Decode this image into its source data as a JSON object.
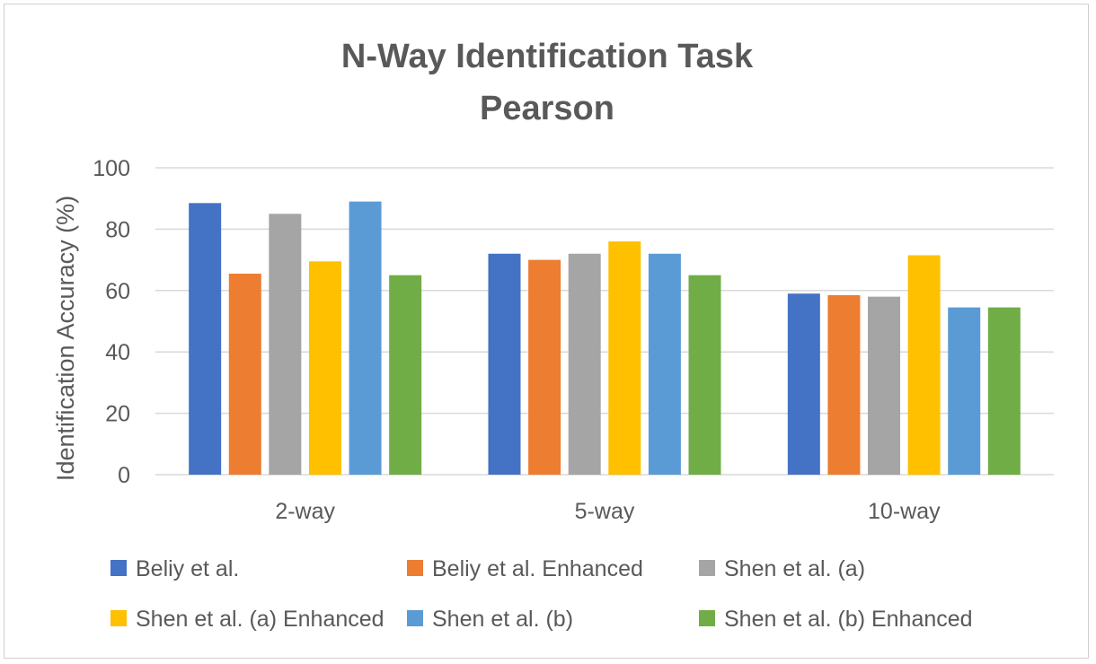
{
  "chart_data": {
    "type": "bar",
    "title": "N-Way Identification Task",
    "subtitle": "Pearson",
    "xlabel": "",
    "ylabel": "Identification Accuracy (%)",
    "ylim": [
      0,
      100
    ],
    "yticks": [
      0,
      20,
      40,
      60,
      80,
      100
    ],
    "grid": true,
    "legend_position": "bottom",
    "categories": [
      "2-way",
      "5-way",
      "10-way"
    ],
    "series": [
      {
        "name": "Beliy et al.",
        "color": "#4472c4",
        "values": [
          88.5,
          72,
          59
        ]
      },
      {
        "name": "Beliy et al. Enhanced",
        "color": "#ed7d31",
        "values": [
          65.5,
          70,
          58.5
        ]
      },
      {
        "name": "Shen et al. (a)",
        "color": "#a5a5a5",
        "values": [
          85,
          72,
          58
        ]
      },
      {
        "name": "Shen et al. (a) Enhanced",
        "color": "#ffc000",
        "values": [
          69.5,
          76,
          71.5
        ]
      },
      {
        "name": "Shen et al. (b)",
        "color": "#5b9bd5",
        "values": [
          89,
          72,
          54.5
        ]
      },
      {
        "name": "Shen et al. (b) Enhanced",
        "color": "#70ad47",
        "values": [
          65,
          65,
          54.5
        ]
      }
    ]
  }
}
